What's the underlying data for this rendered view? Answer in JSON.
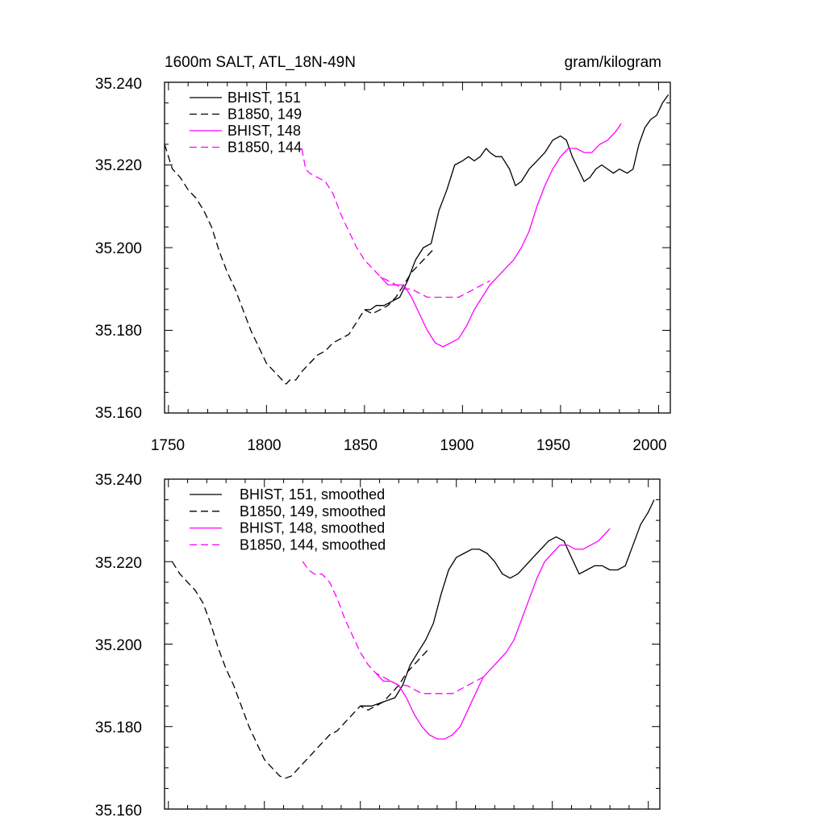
{
  "colors": {
    "black": "#000000",
    "magenta": "#ff00ff",
    "frame": "#000000",
    "background": "#ffffff"
  },
  "chart_data": [
    {
      "type": "line",
      "panel": "top",
      "title_left": "1600m SALT, ATL_18N-49N",
      "title_right": "gram/kilogram",
      "xlim": [
        1748,
        2006
      ],
      "ylim": [
        35.16,
        35.24
      ],
      "x_ticks": [
        "1750",
        "1800",
        "1850",
        "1900",
        "1950",
        "2000"
      ],
      "y_ticks": [
        "35.160",
        "35.180",
        "35.200",
        "35.220",
        "35.240"
      ],
      "legend_position": "top-left",
      "series": [
        {
          "name": "BHIST, 151",
          "color": "black",
          "dash": "solid",
          "x": [
            1850,
            1853,
            1856,
            1860,
            1864,
            1868,
            1872,
            1876,
            1880,
            1884,
            1888,
            1892,
            1896,
            1900,
            1903,
            1906,
            1909,
            1912,
            1914,
            1917,
            1920,
            1924,
            1927,
            1930,
            1934,
            1938,
            1942,
            1946,
            1950,
            1953,
            1956,
            1959,
            1962,
            1965,
            1968,
            1971,
            1974,
            1977,
            1980,
            1984,
            1987,
            1990,
            1993,
            1996,
            1999,
            2002,
            2005
          ],
          "y": [
            35.185,
            35.185,
            35.186,
            35.186,
            35.187,
            35.188,
            35.192,
            35.197,
            35.2,
            35.201,
            35.209,
            35.214,
            35.22,
            35.221,
            35.222,
            35.221,
            35.222,
            35.224,
            35.223,
            35.222,
            35.222,
            35.219,
            35.215,
            35.216,
            35.219,
            35.221,
            35.223,
            35.226,
            35.227,
            35.226,
            35.222,
            35.219,
            35.216,
            35.217,
            35.219,
            35.22,
            35.219,
            35.218,
            35.219,
            35.218,
            35.219,
            35.225,
            35.229,
            35.231,
            35.232,
            35.235,
            35.237
          ]
        },
        {
          "name": "B1850, 149",
          "color": "black",
          "dash": "dashed",
          "x": [
            1748,
            1752,
            1756,
            1760,
            1764,
            1768,
            1772,
            1776,
            1780,
            1784,
            1788,
            1792,
            1796,
            1800,
            1804,
            1808,
            1810,
            1812,
            1815,
            1818,
            1822,
            1826,
            1830,
            1834,
            1838,
            1842,
            1846,
            1850,
            1854,
            1858,
            1862,
            1866,
            1870,
            1874,
            1878,
            1882,
            1886
          ],
          "y": [
            35.225,
            35.219,
            35.217,
            35.214,
            35.212,
            35.209,
            35.205,
            35.199,
            35.194,
            35.19,
            35.185,
            35.18,
            35.176,
            35.172,
            35.17,
            35.168,
            35.167,
            35.168,
            35.168,
            35.17,
            35.172,
            35.174,
            35.175,
            35.177,
            35.178,
            35.179,
            35.182,
            35.185,
            35.184,
            35.185,
            35.186,
            35.188,
            35.191,
            35.194,
            35.196,
            35.198,
            35.2
          ]
        },
        {
          "name": "BHIST, 148",
          "color": "magenta",
          "dash": "solid",
          "x": [
            1858,
            1862,
            1866,
            1870,
            1874,
            1878,
            1882,
            1886,
            1890,
            1894,
            1898,
            1902,
            1906,
            1910,
            1914,
            1918,
            1922,
            1926,
            1930,
            1934,
            1938,
            1942,
            1946,
            1950,
            1954,
            1958,
            1962,
            1966,
            1970,
            1974,
            1978,
            1981
          ],
          "y": [
            35.193,
            35.191,
            35.191,
            35.191,
            35.188,
            35.184,
            35.18,
            35.177,
            35.176,
            35.177,
            35.178,
            35.181,
            35.185,
            35.188,
            35.191,
            35.193,
            35.195,
            35.197,
            35.2,
            35.204,
            35.21,
            35.215,
            35.219,
            35.222,
            35.224,
            35.224,
            35.223,
            35.223,
            35.225,
            35.226,
            35.228,
            35.23
          ]
        },
        {
          "name": "B1850, 144",
          "color": "magenta",
          "dash": "dashed",
          "x": [
            1818,
            1820,
            1822,
            1826,
            1830,
            1834,
            1838,
            1842,
            1846,
            1850,
            1854,
            1858,
            1862,
            1866,
            1870,
            1874,
            1878,
            1882,
            1886,
            1890,
            1894,
            1898,
            1902,
            1906,
            1910,
            1914
          ],
          "y": [
            35.224,
            35.219,
            35.218,
            35.217,
            35.216,
            35.213,
            35.208,
            35.204,
            35.2,
            35.197,
            35.195,
            35.193,
            35.192,
            35.191,
            35.19,
            35.19,
            35.189,
            35.188,
            35.188,
            35.188,
            35.188,
            35.188,
            35.189,
            35.19,
            35.191,
            35.192
          ]
        }
      ]
    },
    {
      "type": "line",
      "panel": "bottom",
      "xlim": [
        1748,
        2006
      ],
      "ylim": [
        35.16,
        35.24
      ],
      "y_ticks": [
        "35.160",
        "35.180",
        "35.200",
        "35.220",
        "35.240"
      ],
      "legend_position": "top-left",
      "series": [
        {
          "name": "BHIST, 151, smoothed",
          "color": "black",
          "dash": "solid",
          "x": [
            1850,
            1856,
            1862,
            1868,
            1872,
            1876,
            1880,
            1884,
            1888,
            1892,
            1896,
            1900,
            1904,
            1908,
            1912,
            1916,
            1920,
            1924,
            1928,
            1932,
            1936,
            1940,
            1944,
            1948,
            1952,
            1956,
            1960,
            1964,
            1968,
            1972,
            1976,
            1980,
            1984,
            1988,
            1992,
            1996,
            2000,
            2003
          ],
          "y": [
            35.185,
            35.185,
            35.186,
            35.187,
            35.19,
            35.195,
            35.198,
            35.201,
            35.205,
            35.212,
            35.218,
            35.221,
            35.222,
            35.223,
            35.223,
            35.222,
            35.22,
            35.217,
            35.216,
            35.217,
            35.219,
            35.221,
            35.223,
            35.225,
            35.226,
            35.225,
            35.221,
            35.217,
            35.218,
            35.219,
            35.219,
            35.218,
            35.218,
            35.219,
            35.224,
            35.229,
            35.232,
            35.235
          ]
        },
        {
          "name": "B1850, 149, smoothed",
          "color": "black",
          "dash": "dashed",
          "x": [
            1752,
            1756,
            1760,
            1764,
            1768,
            1772,
            1776,
            1780,
            1784,
            1788,
            1792,
            1796,
            1800,
            1804,
            1808,
            1811,
            1814,
            1818,
            1822,
            1826,
            1830,
            1834,
            1838,
            1842,
            1846,
            1850,
            1854,
            1858,
            1862,
            1866,
            1870,
            1874,
            1878,
            1882,
            1886
          ],
          "y": [
            35.22,
            35.217,
            35.215,
            35.213,
            35.21,
            35.205,
            35.199,
            35.194,
            35.19,
            35.185,
            35.18,
            35.176,
            35.172,
            35.17,
            35.168,
            35.1675,
            35.168,
            35.17,
            35.172,
            35.174,
            35.176,
            35.178,
            35.179,
            35.181,
            35.183,
            35.185,
            35.184,
            35.185,
            35.186,
            35.188,
            35.19,
            35.193,
            35.195,
            35.197,
            35.199
          ]
        },
        {
          "name": "BHIST, 148, smoothed",
          "color": "magenta",
          "dash": "solid",
          "x": [
            1858,
            1862,
            1866,
            1870,
            1874,
            1878,
            1882,
            1886,
            1890,
            1894,
            1898,
            1902,
            1906,
            1910,
            1914,
            1918,
            1922,
            1926,
            1930,
            1934,
            1938,
            1942,
            1946,
            1950,
            1954,
            1958,
            1962,
            1966,
            1970,
            1974,
            1978,
            1980
          ],
          "y": [
            35.193,
            35.191,
            35.191,
            35.19,
            35.187,
            35.183,
            35.18,
            35.178,
            35.177,
            35.177,
            35.178,
            35.18,
            35.184,
            35.188,
            35.192,
            35.194,
            35.196,
            35.198,
            35.201,
            35.206,
            35.211,
            35.216,
            35.22,
            35.222,
            35.224,
            35.224,
            35.223,
            35.223,
            35.224,
            35.225,
            35.227,
            35.228
          ]
        },
        {
          "name": "B1850, 144, smoothed",
          "color": "magenta",
          "dash": "dashed",
          "x": [
            1820,
            1823,
            1826,
            1830,
            1834,
            1838,
            1842,
            1846,
            1850,
            1854,
            1858,
            1862,
            1866,
            1870,
            1874,
            1878,
            1882,
            1886,
            1890,
            1894,
            1898,
            1902,
            1906,
            1910,
            1914
          ],
          "y": [
            35.22,
            35.218,
            35.217,
            35.217,
            35.215,
            35.211,
            35.206,
            35.202,
            35.198,
            35.195,
            35.193,
            35.192,
            35.191,
            35.19,
            35.19,
            35.189,
            35.188,
            35.188,
            35.188,
            35.188,
            35.188,
            35.189,
            35.19,
            35.191,
            35.192
          ]
        }
      ]
    }
  ]
}
